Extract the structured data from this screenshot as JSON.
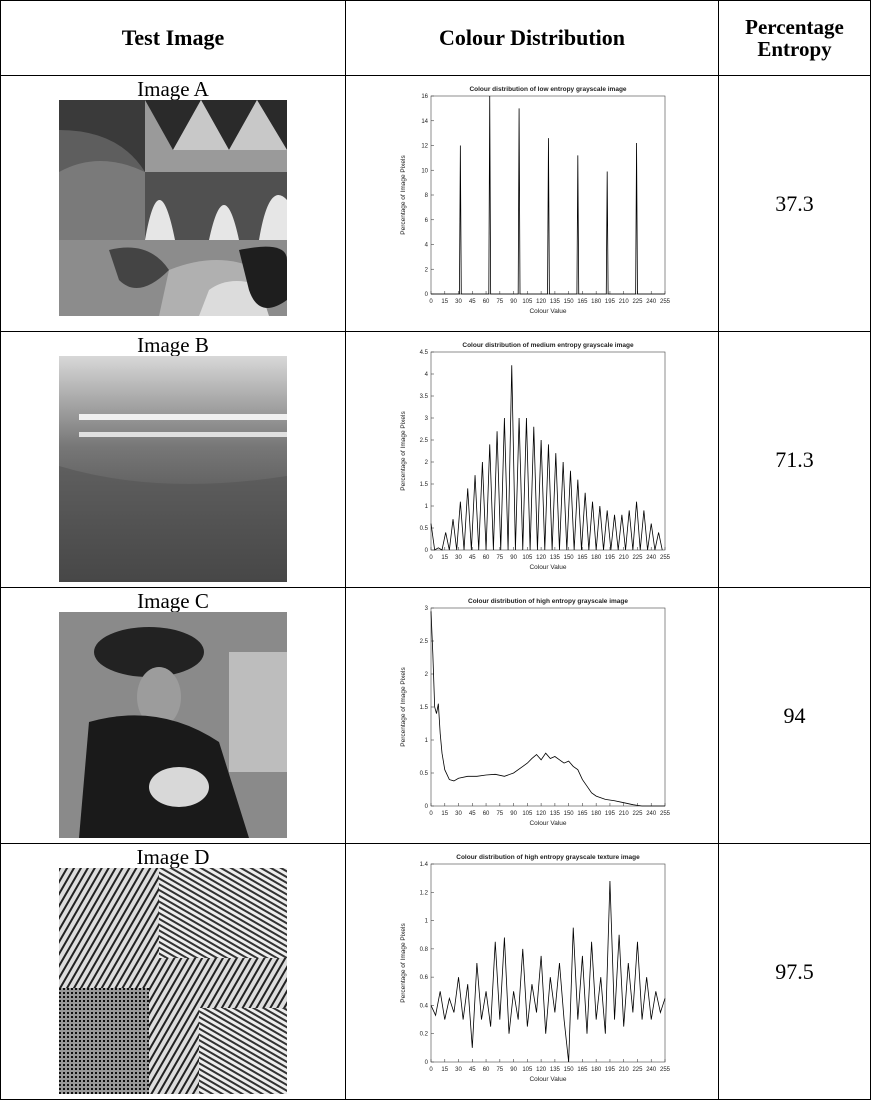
{
  "table": {
    "header": [
      "Test Image",
      "Colour Distribution",
      "Percentage Entropy"
    ],
    "rows": [
      {
        "label": "Image A",
        "entropy": 37.3,
        "chart": {
          "type": "line",
          "title": "Colour distribution of low entropy grayscale image",
          "xlabel": "Colour Value",
          "ylabel": "Percentage of Image Pixels",
          "color": "#000000",
          "x": [
            0,
            31,
            32,
            33,
            63,
            64,
            65,
            95,
            96,
            97,
            127,
            128,
            129,
            159,
            160,
            161,
            191,
            192,
            193,
            223,
            224,
            225,
            255
          ],
          "values": [
            0,
            0,
            12,
            0,
            0,
            16,
            0,
            0,
            15,
            0,
            0,
            12.6,
            0,
            0,
            11.2,
            0,
            0,
            9.9,
            0,
            0,
            12.2,
            0,
            0
          ],
          "xlim": [
            0,
            255
          ],
          "ylim": [
            0,
            16
          ],
          "xticks": [
            0,
            15,
            30,
            45,
            60,
            75,
            90,
            105,
            120,
            135,
            150,
            165,
            180,
            195,
            210,
            225,
            240,
            255
          ],
          "yticks": [
            0,
            2,
            4,
            6,
            8,
            10,
            12,
            14,
            16
          ]
        }
      },
      {
        "label": "Image B",
        "entropy": 71.3,
        "chart": {
          "type": "line",
          "title": "Colour distribution of medium entropy grayscale image",
          "xlabel": "Colour Value",
          "ylabel": "Percentage of Image Pixels",
          "color": "#000000",
          "x": [
            0,
            4,
            8,
            12,
            16,
            20,
            24,
            28,
            32,
            36,
            40,
            44,
            48,
            52,
            56,
            60,
            64,
            68,
            72,
            76,
            80,
            84,
            88,
            92,
            96,
            100,
            104,
            108,
            112,
            116,
            120,
            124,
            128,
            132,
            136,
            140,
            144,
            148,
            152,
            156,
            160,
            164,
            168,
            172,
            176,
            180,
            184,
            188,
            192,
            196,
            200,
            204,
            208,
            212,
            216,
            220,
            224,
            228,
            232,
            236,
            240,
            244,
            248,
            252
          ],
          "values": [
            0.6,
            0,
            0.05,
            0,
            0.4,
            0,
            0.7,
            0,
            1.1,
            0,
            1.4,
            0,
            1.7,
            0,
            2.0,
            0,
            2.4,
            0,
            2.7,
            0,
            3.0,
            0,
            4.2,
            0,
            3.0,
            0,
            3.0,
            0,
            2.8,
            0,
            2.5,
            0,
            2.4,
            0,
            2.2,
            0,
            2.0,
            0,
            1.8,
            0,
            1.6,
            0,
            1.3,
            0,
            1.1,
            0,
            1.0,
            0,
            0.9,
            0,
            0.8,
            0,
            0.8,
            0,
            0.9,
            0,
            1.1,
            0,
            0.9,
            0,
            0.6,
            0,
            0.4,
            0
          ],
          "xlim": [
            0,
            255
          ],
          "ylim": [
            0,
            4.5
          ],
          "xticks": [
            0,
            15,
            30,
            45,
            60,
            75,
            90,
            105,
            120,
            135,
            150,
            165,
            180,
            195,
            210,
            225,
            240,
            255
          ],
          "yticks": [
            0,
            0.5,
            1,
            1.5,
            2,
            2.5,
            3,
            3.5,
            4,
            4.5
          ]
        }
      },
      {
        "label": "Image C",
        "entropy": 94,
        "chart": {
          "type": "line",
          "title": "Colour distribution of high entropy grayscale image",
          "xlabel": "Colour Value",
          "ylabel": "Percentage of Image Pixels",
          "color": "#000000",
          "x": [
            0,
            2,
            4,
            6,
            8,
            10,
            12,
            15,
            20,
            25,
            30,
            40,
            50,
            60,
            70,
            80,
            90,
            100,
            105,
            110,
            115,
            120,
            125,
            130,
            135,
            140,
            145,
            150,
            155,
            160,
            165,
            170,
            175,
            180,
            190,
            200,
            210,
            220,
            230,
            240,
            255
          ],
          "values": [
            2.95,
            2.3,
            1.5,
            1.4,
            1.55,
            1.1,
            0.8,
            0.55,
            0.4,
            0.38,
            0.42,
            0.45,
            0.45,
            0.47,
            0.48,
            0.45,
            0.5,
            0.6,
            0.65,
            0.72,
            0.78,
            0.7,
            0.8,
            0.72,
            0.75,
            0.7,
            0.65,
            0.68,
            0.6,
            0.55,
            0.4,
            0.3,
            0.2,
            0.15,
            0.1,
            0.08,
            0.05,
            0.02,
            0,
            0,
            0
          ],
          "xlim": [
            0,
            255
          ],
          "ylim": [
            0,
            3
          ],
          "xticks": [
            0,
            15,
            30,
            45,
            60,
            75,
            90,
            105,
            120,
            135,
            150,
            165,
            180,
            195,
            210,
            225,
            240,
            255
          ],
          "yticks": [
            0,
            0.5,
            1,
            1.5,
            2,
            2.5,
            3
          ]
        }
      },
      {
        "label": "Image D",
        "entropy": 97.5,
        "chart": {
          "type": "line",
          "title": "Colour distribution of high entropy grayscale texture image",
          "xlabel": "Colour Value",
          "ylabel": "Percentage of Image Pixels",
          "color": "#000000",
          "x": [
            0,
            5,
            10,
            15,
            20,
            25,
            30,
            35,
            40,
            45,
            50,
            55,
            60,
            65,
            70,
            75,
            80,
            85,
            90,
            95,
            100,
            105,
            110,
            115,
            120,
            125,
            130,
            135,
            140,
            145,
            150,
            155,
            160,
            165,
            170,
            175,
            180,
            185,
            190,
            195,
            200,
            205,
            210,
            215,
            220,
            225,
            230,
            235,
            240,
            245,
            250,
            255
          ],
          "values": [
            0.4,
            0.33,
            0.5,
            0.3,
            0.45,
            0.35,
            0.6,
            0.3,
            0.55,
            0.1,
            0.7,
            0.3,
            0.5,
            0.25,
            0.85,
            0.3,
            0.88,
            0.2,
            0.5,
            0.3,
            0.8,
            0.25,
            0.55,
            0.35,
            0.75,
            0.2,
            0.6,
            0.35,
            0.7,
            0.3,
            0,
            0.95,
            0.3,
            0.75,
            0.2,
            0.85,
            0.3,
            0.6,
            0.2,
            1.28,
            0.3,
            0.9,
            0.25,
            0.7,
            0.35,
            0.85,
            0.3,
            0.6,
            0.3,
            0.5,
            0.35,
            0.45
          ],
          "xlim": [
            0,
            255
          ],
          "ylim": [
            0,
            1.4
          ],
          "xticks": [
            0,
            15,
            30,
            45,
            60,
            75,
            90,
            105,
            120,
            135,
            150,
            165,
            180,
            195,
            210,
            225,
            240,
            255
          ],
          "yticks": [
            0,
            0.2,
            0.4,
            0.6,
            0.8,
            1,
            1.2,
            1.4
          ]
        }
      }
    ]
  }
}
